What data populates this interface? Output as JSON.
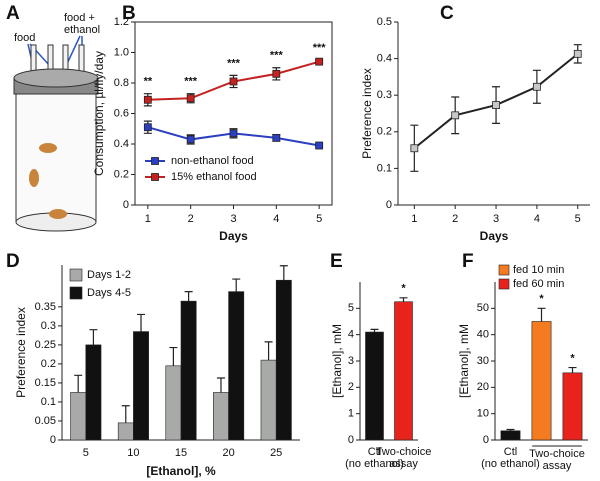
{
  "illustration": {
    "panel": "A",
    "food_label": "food",
    "mix_label": [
      "food +",
      "ethanol"
    ]
  },
  "chart_data": [
    {
      "type": "line",
      "panel": "B",
      "xlabel": "Days",
      "ylabel": "Consumption, µl/fly/day",
      "x": [
        1,
        2,
        3,
        4,
        5
      ],
      "xlim": [
        0.7,
        5.3
      ],
      "xticks": [
        1,
        2,
        3,
        4,
        5
      ],
      "ylim": [
        0,
        1.2
      ],
      "yticks": [
        0,
        0.2,
        0.4,
        0.6,
        0.8,
        {
          "value": 1,
          "label": "1.0"
        },
        1.2
      ],
      "series": [
        {
          "name": "non-ethanol food",
          "color": "#2b3fc0",
          "values": [
            0.51,
            0.43,
            0.47,
            0.44,
            0.39
          ],
          "errors": [
            0.04,
            0.03,
            0.03,
            0.02,
            0.01
          ]
        },
        {
          "name": "15% ethanol food",
          "color": "#c42121",
          "values": [
            0.69,
            0.7,
            0.81,
            0.86,
            0.94
          ],
          "errors": [
            0.04,
            0.03,
            0.04,
            0.04,
            0.01
          ]
        }
      ],
      "annotations": [
        "**",
        "***",
        "***",
        "***",
        "***"
      ],
      "box": true
    },
    {
      "type": "line",
      "panel": "C",
      "xlabel": "Days",
      "ylabel": "Preference index",
      "x": [
        1,
        2,
        3,
        4,
        5
      ],
      "xlim": [
        0.6,
        5.3
      ],
      "xticks": [
        1,
        2,
        3,
        4,
        5
      ],
      "ylim": [
        0,
        0.5
      ],
      "yticks": [
        0,
        0.1,
        0.2,
        0.3,
        0.4,
        0.5
      ],
      "series": [
        {
          "color": "#222222",
          "marker_color": "#c8c8c8",
          "values": [
            0.155,
            0.245,
            0.273,
            0.323,
            0.413
          ],
          "errors": [
            0.063,
            0.05,
            0.05,
            0.045,
            0.025
          ]
        }
      ]
    },
    {
      "type": "bar",
      "panel": "D",
      "xlabel": "[Ethanol], %",
      "ylabel": "Preference index",
      "categories": [
        5,
        10,
        15,
        20,
        25
      ],
      "ylim": [
        0,
        0.46
      ],
      "yticks": [
        0,
        0.05,
        0.1,
        0.15,
        0.2,
        0.25,
        0.3,
        0.35
      ],
      "series": [
        {
          "name": "Days 1-2",
          "color": "#a8aaa8",
          "values": [
            0.125,
            0.045,
            0.195,
            0.125,
            0.21
          ],
          "errors": [
            0.045,
            0.045,
            0.048,
            0.038,
            0.048
          ]
        },
        {
          "name": "Days 4-5",
          "color": "#111111",
          "values": [
            0.25,
            0.285,
            0.365,
            0.39,
            0.42
          ],
          "errors": [
            0.04,
            0.045,
            0.025,
            0.033,
            0.038
          ]
        }
      ]
    },
    {
      "type": "bar",
      "panel": "E",
      "ylabel": "[Ethanol], mM",
      "categories": [
        [
          "Ctl",
          "(no ethanol)"
        ],
        [
          "Two-choice",
          "assay"
        ]
      ],
      "ylim": [
        0,
        6
      ],
      "yticks": [
        0,
        1,
        2,
        3,
        4,
        5
      ],
      "values": [
        4.1,
        5.25
      ],
      "errors": [
        0.1,
        0.15
      ],
      "colors": [
        "#111111",
        "#e8231c"
      ],
      "annotations": [
        null,
        "*"
      ]
    },
    {
      "type": "bar",
      "panel": "F",
      "ylabel": "[Ethanol], mM",
      "categories": [
        [
          "Ctl",
          "(no ethanol)"
        ],
        null,
        null
      ],
      "group_label": [
        "Two-choice",
        "assay"
      ],
      "ylim": [
        0,
        60
      ],
      "yticks": [
        0,
        10,
        20,
        30,
        40,
        50
      ],
      "values": [
        3.5,
        45,
        25.5
      ],
      "errors": [
        0.5,
        5,
        2
      ],
      "colors": [
        "#111111",
        "#f47b20",
        "#e8231c"
      ],
      "annotations": [
        null,
        "*",
        "*"
      ],
      "legend": [
        {
          "name": "fed 10 min",
          "color": "#f47b20"
        },
        {
          "name": "fed 60 min",
          "color": "#e8231c"
        }
      ]
    }
  ]
}
